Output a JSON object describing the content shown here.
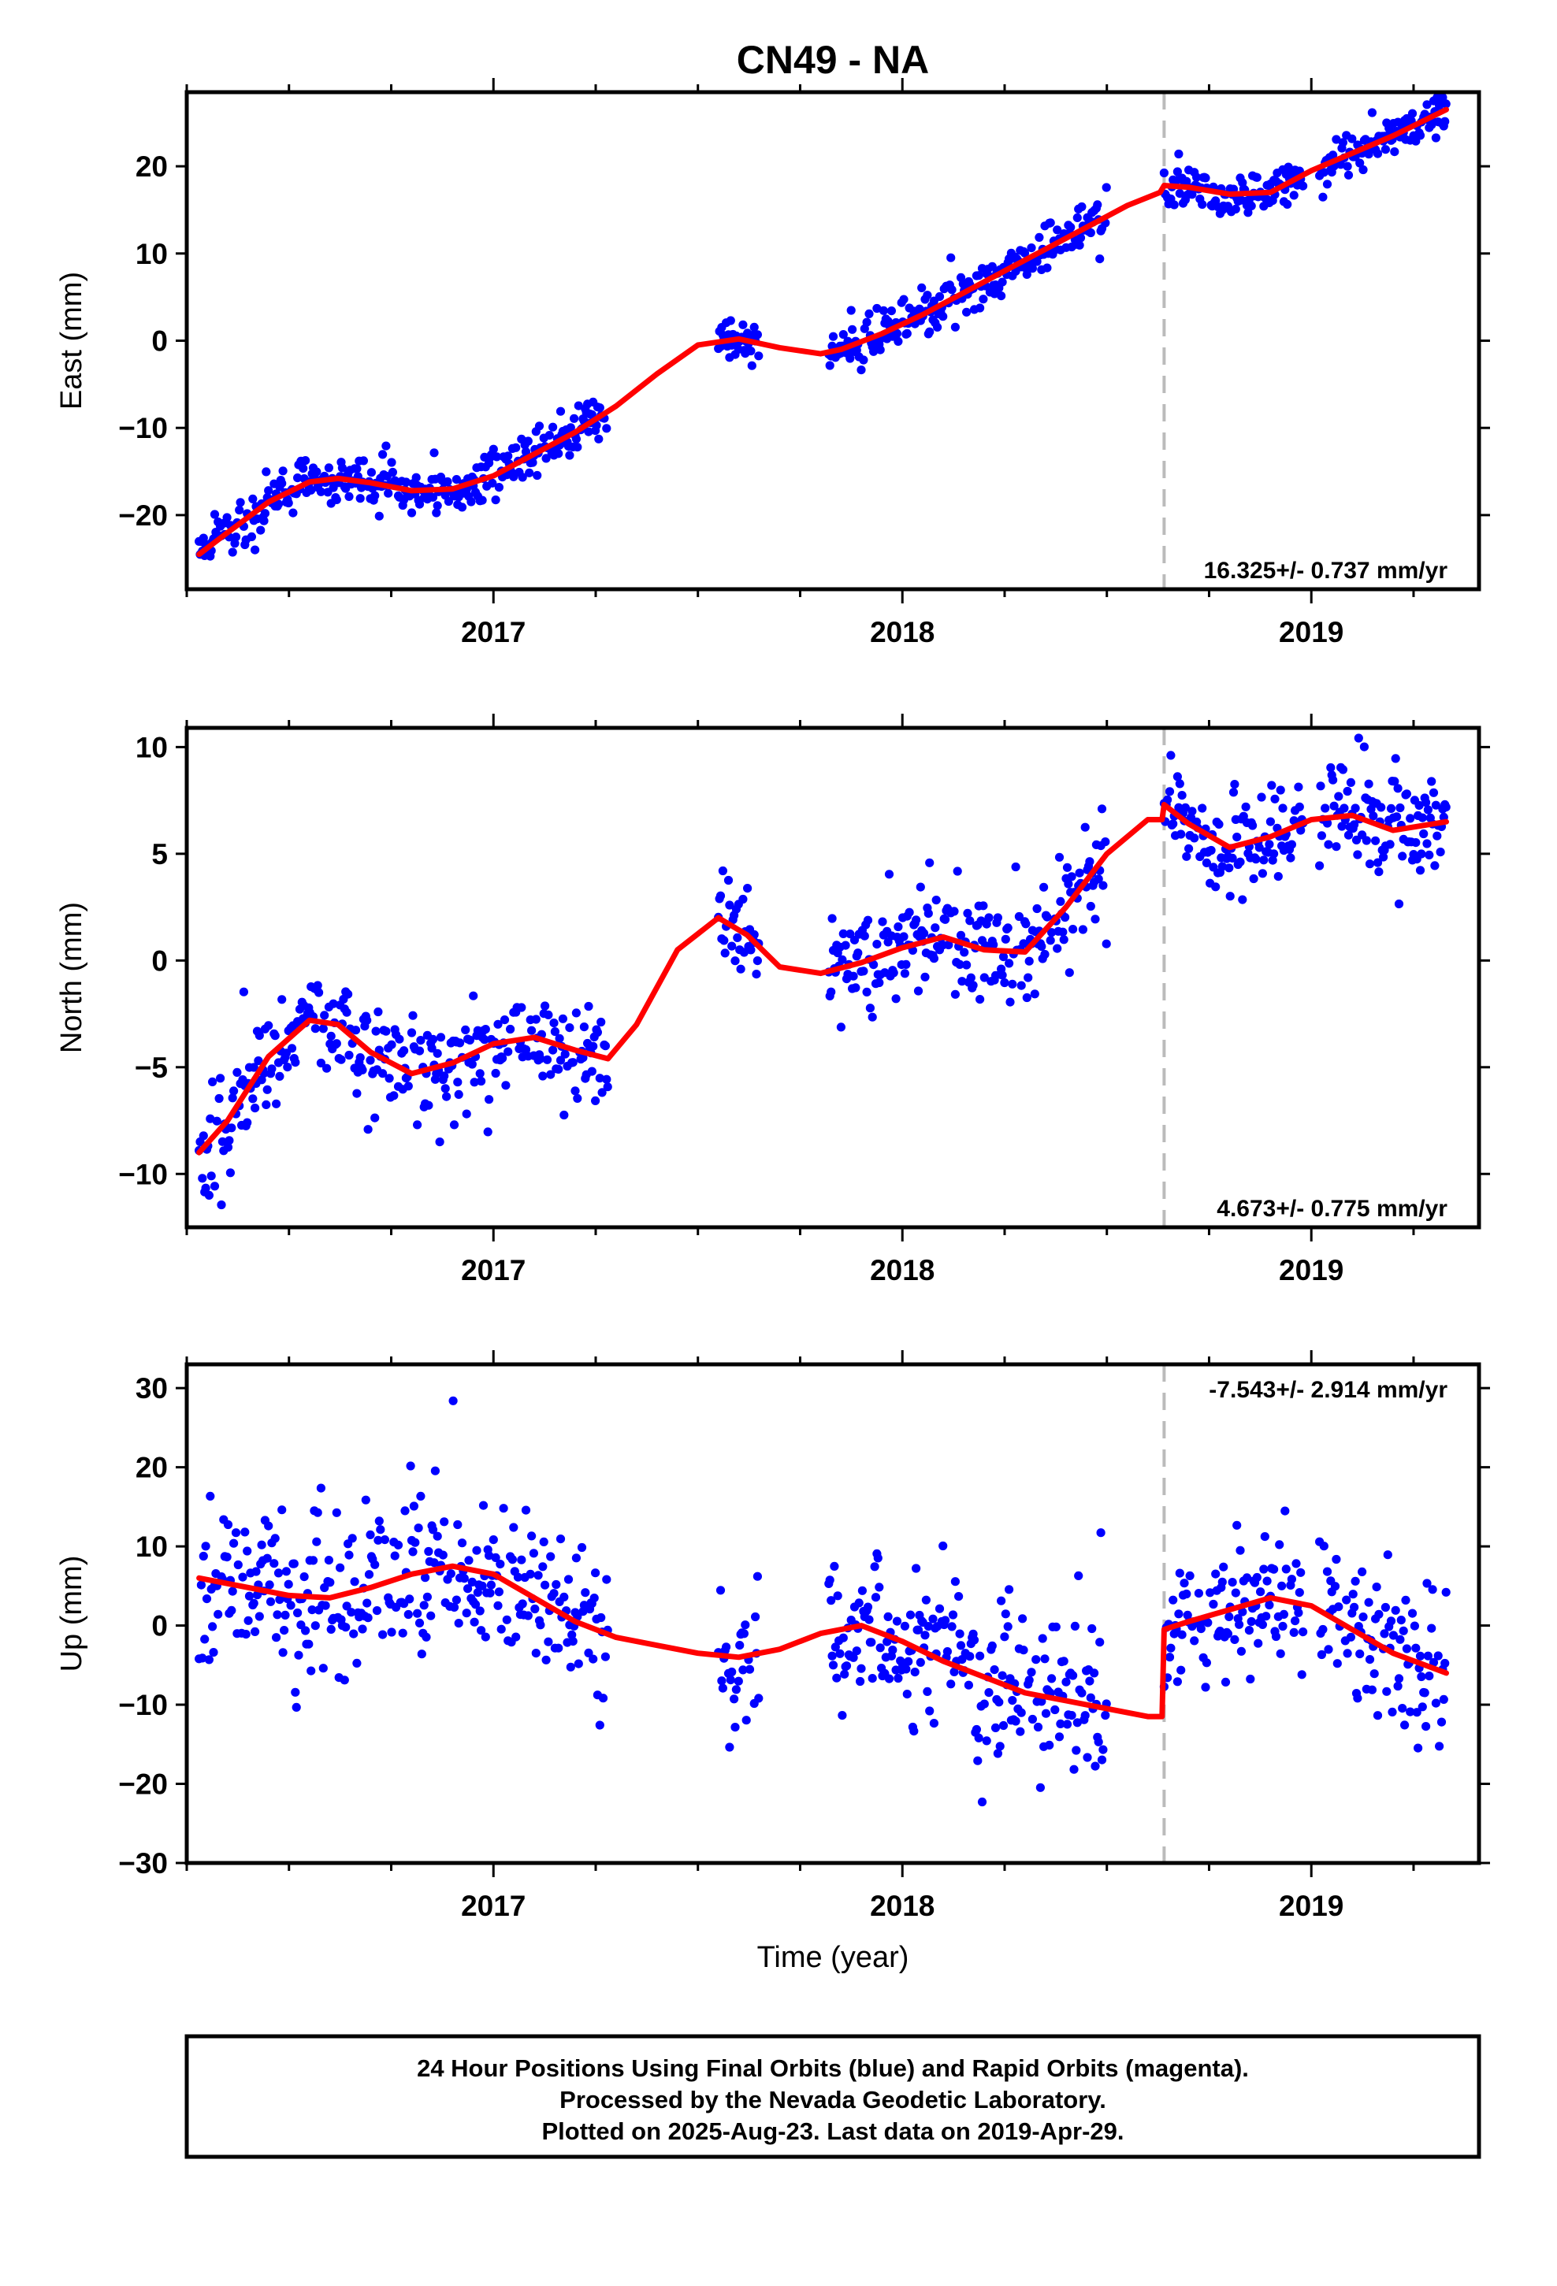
{
  "figure_title": "CN49 - NA",
  "caption": {
    "lines": [
      "24 Hour Positions Using Final Orbits (blue) and Rapid Orbits (magenta).",
      "Processed by the Nevada Geodetic Laboratory.",
      "Plotted on 2025-Aug-23. Last data on 2019-Apr-29."
    ]
  },
  "colors": {
    "final_orbits": "#0000ff",
    "fit": "#ff0000",
    "offset_line": "#bbbbbb",
    "axis": "#000000"
  },
  "chart_data": [
    {
      "type": "scatter",
      "ylabel": "East (mm)",
      "xlabel": "",
      "xlim": [
        2016.25,
        2019.41
      ],
      "ylim": [
        -28.5,
        28.5
      ],
      "xticks": [
        2017,
        2018,
        2019
      ],
      "xtick_labels": [
        "2017",
        "2018",
        "2019"
      ],
      "xminor": [
        2016.25,
        2016.5,
        2016.75,
        2017.25,
        2017.5,
        2017.75,
        2018.25,
        2018.5,
        2018.75,
        2019.25
      ],
      "yticks": [
        -20,
        -10,
        0,
        10,
        20
      ],
      "ytick_labels": [
        "−20",
        "−10",
        "0",
        "10",
        "20"
      ],
      "rate_label": "16.325+/- 0.737 mm/yr",
      "rate_position": "bottom-right",
      "offset_epoch": 2018.64,
      "fit": {
        "x": [
          2016.28,
          2016.35,
          2016.45,
          2016.55,
          2016.62,
          2016.7,
          2016.8,
          2016.9,
          2017.0,
          2017.1,
          2017.2,
          2017.3,
          2017.4,
          2017.5,
          2017.6,
          2017.7,
          2017.8,
          2017.85,
          2017.95,
          2018.05,
          2018.15,
          2018.25,
          2018.35,
          2018.45,
          2018.55,
          2018.63,
          2018.64,
          2018.7,
          2018.8,
          2018.9,
          2019.0,
          2019.1,
          2019.2,
          2019.33
        ],
        "y": [
          -24.5,
          -22.0,
          -18.5,
          -16.2,
          -15.8,
          -16.3,
          -17.2,
          -17.0,
          -15.5,
          -13.0,
          -10.5,
          -7.5,
          -3.8,
          -0.5,
          0.2,
          -0.8,
          -1.5,
          -1.0,
          0.8,
          3.0,
          5.5,
          8.0,
          10.5,
          13.0,
          15.5,
          17.0,
          17.8,
          17.6,
          16.8,
          17.0,
          19.5,
          21.5,
          23.5,
          26.5
        ]
      },
      "scatter_segments": [
        {
          "x_start": 2016.28,
          "x_end": 2017.28,
          "noise": 1.4
        },
        {
          "x_start": 2017.55,
          "x_end": 2017.65,
          "noise": 1.2
        },
        {
          "x_start": 2017.82,
          "x_end": 2018.5,
          "noise": 1.5
        },
        {
          "x_start": 2018.64,
          "x_end": 2018.98,
          "noise": 1.2
        },
        {
          "x_start": 2019.02,
          "x_end": 2019.33,
          "noise": 1.3
        }
      ]
    },
    {
      "type": "scatter",
      "ylabel": "North (mm)",
      "xlabel": "",
      "xlim": [
        2016.25,
        2019.41
      ],
      "ylim": [
        -12.5,
        10.9
      ],
      "xticks": [
        2017,
        2018,
        2019
      ],
      "xtick_labels": [
        "2017",
        "2018",
        "2019"
      ],
      "xminor": [
        2016.25,
        2016.5,
        2016.75,
        2017.25,
        2017.5,
        2017.75,
        2018.25,
        2018.5,
        2018.75,
        2019.25
      ],
      "yticks": [
        -10,
        -5,
        0,
        5,
        10
      ],
      "ytick_labels": [
        "−10",
        "−5",
        "0",
        "5",
        "10"
      ],
      "rate_label": "4.673+/- 0.775 mm/yr",
      "rate_position": "bottom-right",
      "offset_epoch": 2018.64,
      "fit": {
        "x": [
          2016.28,
          2016.35,
          2016.45,
          2016.55,
          2016.62,
          2016.7,
          2016.8,
          2016.9,
          2017.0,
          2017.1,
          2017.2,
          2017.28,
          2017.35,
          2017.45,
          2017.55,
          2017.62,
          2017.7,
          2017.8,
          2017.9,
          2018.0,
          2018.1,
          2018.2,
          2018.3,
          2018.4,
          2018.5,
          2018.6,
          2018.635,
          2018.64,
          2018.7,
          2018.8,
          2018.9,
          2019.0,
          2019.1,
          2019.2,
          2019.33
        ],
        "y": [
          -9.0,
          -7.5,
          -4.5,
          -2.8,
          -3.0,
          -4.3,
          -5.3,
          -4.8,
          -3.9,
          -3.6,
          -4.2,
          -4.6,
          -3.0,
          0.5,
          2.0,
          1.2,
          -0.3,
          -0.6,
          -0.1,
          0.6,
          1.1,
          0.5,
          0.4,
          2.5,
          5.0,
          6.6,
          6.6,
          7.3,
          6.4,
          5.3,
          5.8,
          6.6,
          6.8,
          6.1,
          6.5
        ]
      },
      "scatter_segments": [
        {
          "x_start": 2016.28,
          "x_end": 2017.28,
          "noise": 1.3
        },
        {
          "x_start": 2017.55,
          "x_end": 2017.65,
          "noise": 1.2
        },
        {
          "x_start": 2017.82,
          "x_end": 2018.5,
          "noise": 1.3
        },
        {
          "x_start": 2018.64,
          "x_end": 2018.98,
          "noise": 1.2
        },
        {
          "x_start": 2019.02,
          "x_end": 2019.33,
          "noise": 1.4
        }
      ]
    },
    {
      "type": "scatter",
      "ylabel": "Up (mm)",
      "xlabel": "Time (year)",
      "xlim": [
        2016.25,
        2019.41
      ],
      "ylim": [
        -30.0,
        33.0
      ],
      "xticks": [
        2017,
        2018,
        2019
      ],
      "xtick_labels": [
        "2017",
        "2018",
        "2019"
      ],
      "xminor": [
        2016.25,
        2016.5,
        2016.75,
        2017.25,
        2017.5,
        2017.75,
        2018.25,
        2018.5,
        2018.75,
        2019.25
      ],
      "yticks": [
        -30,
        -20,
        -10,
        0,
        10,
        20,
        30
      ],
      "ytick_labels": [
        "−30",
        "−20",
        "−10",
        "0",
        "10",
        "20",
        "30"
      ],
      "rate_label": "-7.543+/- 2.914 mm/yr",
      "rate_position": "top-right",
      "offset_epoch": 2018.64,
      "fit": {
        "x": [
          2016.28,
          2016.4,
          2016.5,
          2016.6,
          2016.7,
          2016.8,
          2016.9,
          2017.0,
          2017.1,
          2017.2,
          2017.3,
          2017.4,
          2017.5,
          2017.6,
          2017.7,
          2017.8,
          2017.9,
          2018.0,
          2018.1,
          2018.2,
          2018.3,
          2018.4,
          2018.5,
          2018.6,
          2018.635,
          2018.64,
          2018.7,
          2018.8,
          2018.9,
          2019.0,
          2019.1,
          2019.2,
          2019.33
        ],
        "y": [
          6.0,
          4.8,
          3.8,
          3.5,
          4.8,
          6.5,
          7.5,
          6.5,
          3.5,
          0.5,
          -1.5,
          -2.5,
          -3.5,
          -4.0,
          -3.0,
          -1.0,
          0.0,
          -2.0,
          -4.5,
          -6.5,
          -8.5,
          -9.5,
          -10.5,
          -11.5,
          -11.5,
          -0.5,
          0.5,
          2.0,
          3.5,
          2.5,
          -0.5,
          -3.5,
          -6.0
        ]
      },
      "scatter_segments": [
        {
          "x_start": 2016.28,
          "x_end": 2017.28,
          "noise": 5.5
        },
        {
          "x_start": 2017.55,
          "x_end": 2017.65,
          "noise": 5.5
        },
        {
          "x_start": 2017.82,
          "x_end": 2018.5,
          "noise": 5.5
        },
        {
          "x_start": 2018.64,
          "x_end": 2018.98,
          "noise": 4.5
        },
        {
          "x_start": 2019.02,
          "x_end": 2019.33,
          "noise": 5.5
        }
      ]
    }
  ]
}
